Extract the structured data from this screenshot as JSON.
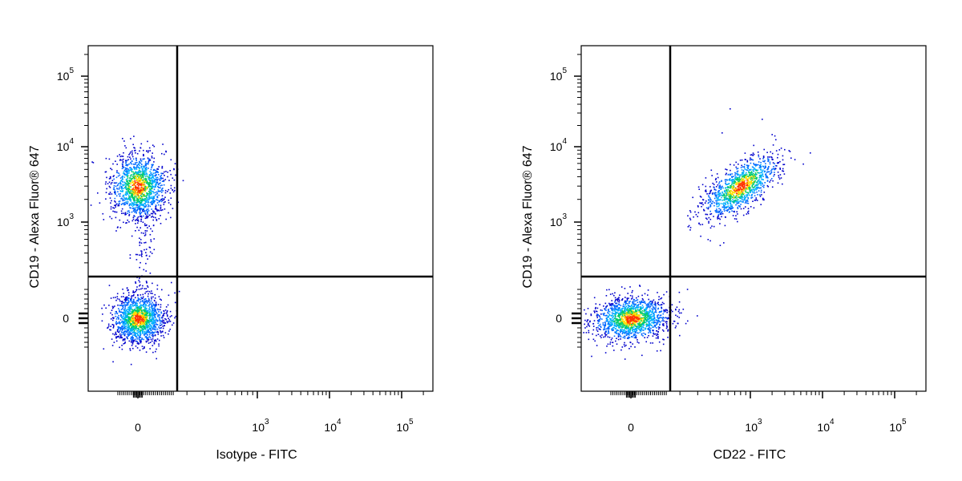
{
  "chart_data": [
    {
      "type": "scatter",
      "subtype": "flow-cytometry-density-dot-plot",
      "xlabel": "Isotype - FITC",
      "ylabel": "CD19 - Alexa Fluor® 647",
      "x_scale": "biexponential",
      "y_scale": "biexponential",
      "x_ticks": [
        "0",
        "10^3",
        "10^4",
        "10^5"
      ],
      "y_ticks": [
        "0",
        "10^3",
        "10^4",
        "10^5"
      ],
      "quadrant_gate": {
        "x": 160,
        "y": 200
      },
      "grid": false,
      "legend": "none",
      "color_scale": [
        "#0000cc",
        "#00a0ff",
        "#00cc66",
        "#ffee00",
        "#ff3300"
      ],
      "populations": [
        {
          "x": 0,
          "y": 3000,
          "relative_size": 0.45
        },
        {
          "x": 0,
          "y": 0,
          "relative_size": 0.55
        }
      ]
    },
    {
      "type": "scatter",
      "subtype": "flow-cytometry-density-dot-plot",
      "xlabel": "CD22 - FITC",
      "ylabel": "CD19 - Alexa Fluor® 647",
      "x_scale": "biexponential",
      "y_scale": "biexponential",
      "x_ticks": [
        "0",
        "10^3",
        "10^4",
        "10^5"
      ],
      "y_ticks": [
        "0",
        "10^3",
        "10^4",
        "10^5"
      ],
      "quadrant_gate": {
        "x": 160,
        "y": 200
      },
      "grid": false,
      "legend": "none",
      "color_scale": [
        "#0000cc",
        "#00a0ff",
        "#00cc66",
        "#ffee00",
        "#ff3300"
      ],
      "populations": [
        {
          "x": 800,
          "y": 3000,
          "relative_size": 0.4
        },
        {
          "x": 0,
          "y": 0,
          "relative_size": 0.6
        }
      ]
    }
  ]
}
